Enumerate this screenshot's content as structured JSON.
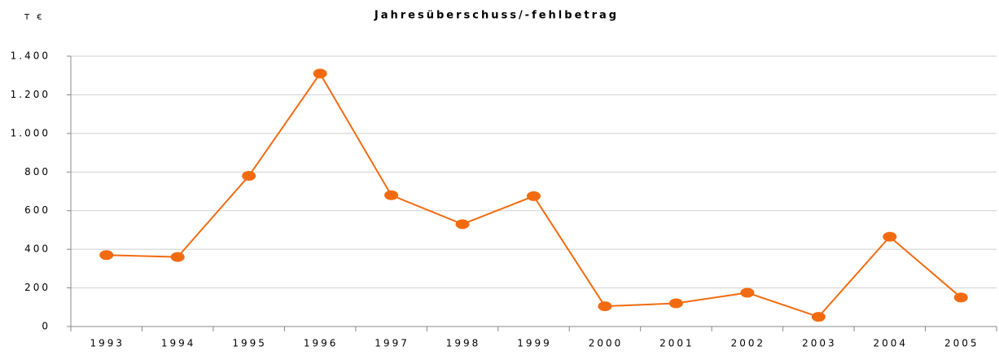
{
  "chart_data": {
    "type": "line",
    "title": "Jahresüberschuss/-fehlbetrag",
    "y_label": "T €",
    "categories": [
      "1993",
      "1994",
      "1995",
      "1996",
      "1997",
      "1998",
      "1999",
      "2000",
      "2001",
      "2002",
      "2003",
      "2004",
      "2005"
    ],
    "series": [
      {
        "name": "Jahresüberschuss/-fehlbetrag",
        "color": "#f26b10",
        "values": [
          370,
          360,
          780,
          1310,
          680,
          530,
          675,
          105,
          120,
          175,
          50,
          465,
          150
        ]
      }
    ],
    "ylim": [
      0,
      1400
    ],
    "yticks": [
      0,
      200,
      400,
      600,
      800,
      {
        "value": 1000,
        "label": "1.000"
      },
      {
        "value": 1200,
        "label": "1.200"
      },
      {
        "value": 1400,
        "label": "1.400"
      }
    ],
    "grid": true
  }
}
